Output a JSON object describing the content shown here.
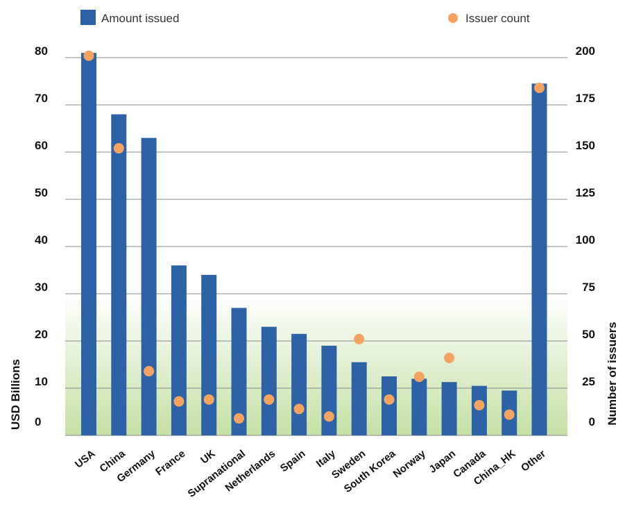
{
  "chart_data": {
    "type": "bar",
    "categories": [
      "USA",
      "China",
      "Germany",
      "France",
      "UK",
      "Supranational",
      "Netherlands",
      "Spain",
      "Italy",
      "Sweden",
      "South Korea",
      "Norway",
      "Japan",
      "Canada",
      "China_HK",
      "Other"
    ],
    "series": [
      {
        "name": "Amount issued",
        "type": "bar",
        "axis": "left",
        "color": "#2e62a6",
        "values": [
          81,
          68,
          63,
          36,
          34,
          27,
          23,
          21.5,
          19,
          15.5,
          12.5,
          12,
          11.3,
          10.5,
          9.5,
          74.5
        ]
      },
      {
        "name": "Issuer count",
        "type": "scatter",
        "axis": "right",
        "color": "#f4a460",
        "values": [
          201,
          152,
          34,
          18,
          19,
          9,
          19,
          14,
          10,
          51,
          19,
          31,
          41,
          16,
          11,
          184
        ]
      }
    ],
    "ylabel": "USD Billions",
    "y2label": "Number of issuers",
    "ylim": [
      0,
      80
    ],
    "y2lim": [
      0,
      200
    ],
    "yticks": [
      "0",
      "10",
      "20",
      "30",
      "40",
      "50",
      "60",
      "70",
      "80"
    ],
    "y2ticks": [
      "0",
      "25",
      "50",
      "75",
      "100",
      "125",
      "150",
      "175",
      "200"
    ],
    "grid": true,
    "legend_position": "top",
    "background_gradient": [
      "#ffffff",
      "#c5e0a5"
    ]
  }
}
